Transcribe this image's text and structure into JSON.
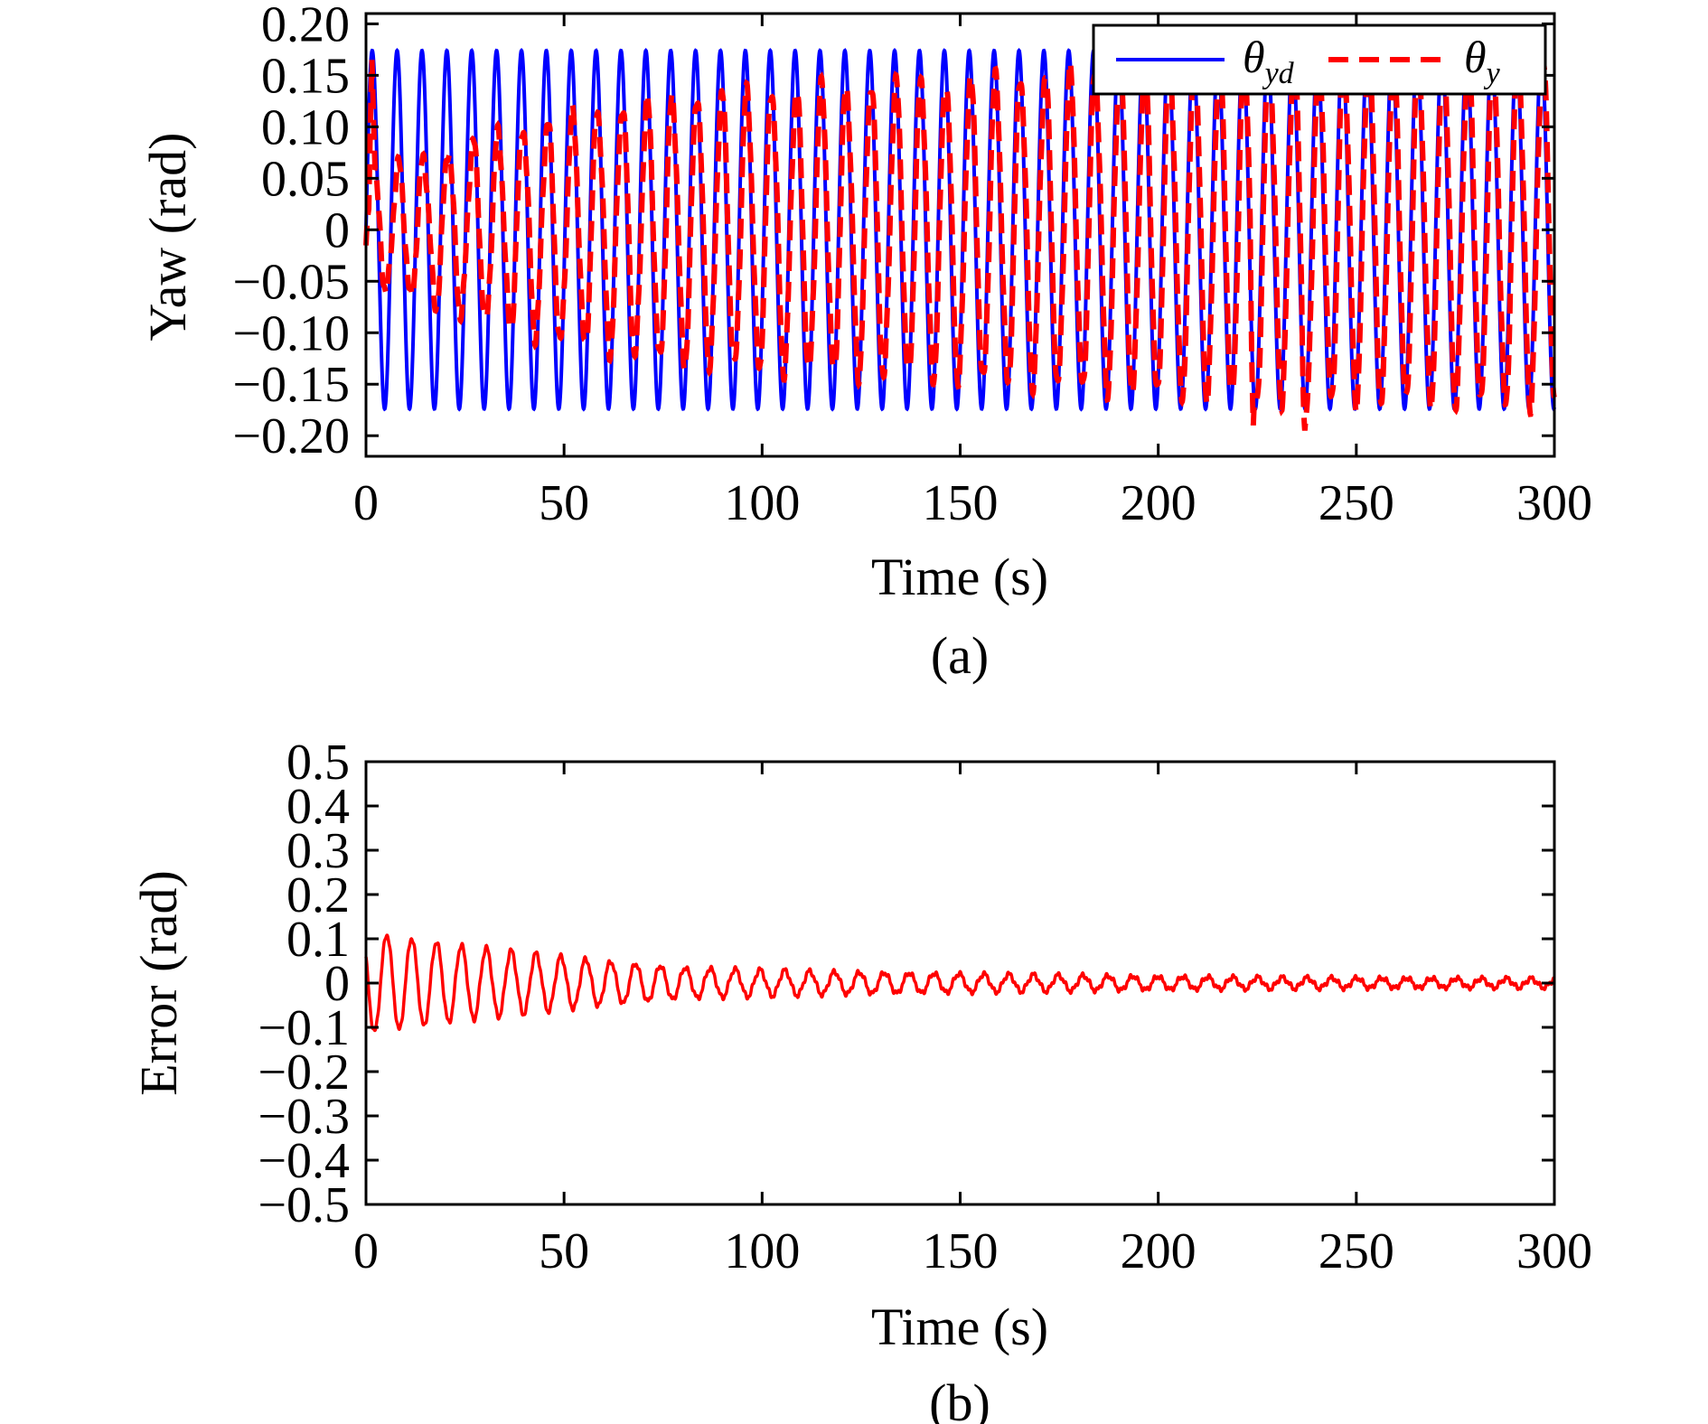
{
  "chart_data": [
    {
      "type": "line",
      "caption": "(a)",
      "xlabel": "Time (s)",
      "ylabel": "Yaw (rad)",
      "xlim": [
        0,
        300
      ],
      "ylim": [
        -0.22,
        0.21
      ],
      "xticks": [
        0,
        50,
        100,
        150,
        200,
        250,
        300
      ],
      "xtick_labels": [
        "0",
        "50",
        "100",
        "150",
        "200",
        "250",
        "300"
      ],
      "yticks": [
        0.2,
        0.15,
        0.1,
        0.05,
        0,
        -0.05,
        -0.1,
        -0.15,
        -0.2
      ],
      "ytick_labels": [
        "0.20",
        "0.15",
        "0.10",
        "0.05",
        "0",
        "−0.05",
        "−0.10",
        "−0.15",
        "−0.20"
      ],
      "grid": false,
      "legend": "top-right",
      "legend_entries": [
        {
          "symbol": "θ",
          "subscript": "yd",
          "style": "solid",
          "color": "#0000ff"
        },
        {
          "symbol": "θ",
          "subscript": "y",
          "style": "dashed",
          "color": "#ff0000"
        }
      ],
      "series": [
        {
          "name": "θyd",
          "color": "#0000ff",
          "style": "solid",
          "amplitude": 0.174,
          "period_s": 6.28,
          "x_range": [
            0,
            300
          ]
        },
        {
          "name": "θy",
          "color": "#ff0000",
          "style": "dashed",
          "envelope_t": [
            0,
            5,
            15,
            30,
            50,
            80,
            120,
            170,
            200,
            220,
            250,
            300
          ],
          "envelope_amp": [
            0.06,
            0.06,
            0.07,
            0.09,
            0.11,
            0.13,
            0.14,
            0.15,
            0.16,
            0.165,
            0.168,
            0.17
          ],
          "spikes": [
            [
              1.5,
              0.165
            ],
            [
              224,
              -0.19
            ],
            [
              237,
              -0.195
            ]
          ]
        }
      ]
    },
    {
      "type": "line",
      "caption": "(b)",
      "xlabel": "Time (s)",
      "ylabel": "Error (rad)",
      "xlim": [
        0,
        300
      ],
      "ylim": [
        -0.5,
        0.5
      ],
      "xticks": [
        0,
        50,
        100,
        150,
        200,
        250,
        300
      ],
      "xtick_labels": [
        "0",
        "50",
        "100",
        "150",
        "200",
        "250",
        "300"
      ],
      "yticks": [
        0.5,
        0.4,
        0.3,
        0.2,
        0.1,
        0,
        -0.1,
        -0.2,
        -0.3,
        -0.4,
        -0.5
      ],
      "ytick_labels": [
        "0.5",
        "0.4",
        "0.3",
        "0.2",
        "0.1",
        "0",
        "−0.1",
        "−0.2",
        "−0.3",
        "−0.4",
        "−0.5"
      ],
      "grid": false,
      "series": [
        {
          "color": "#ff0000",
          "style": "solid",
          "envelope_t": [
            0,
            5,
            20,
            40,
            60,
            80,
            120,
            160,
            200,
            240,
            300
          ],
          "envelope_amp": [
            0.11,
            0.11,
            0.09,
            0.07,
            0.05,
            0.035,
            0.025,
            0.02,
            0.015,
            0.012,
            0.01
          ],
          "period_s": 6.28
        }
      ]
    }
  ]
}
